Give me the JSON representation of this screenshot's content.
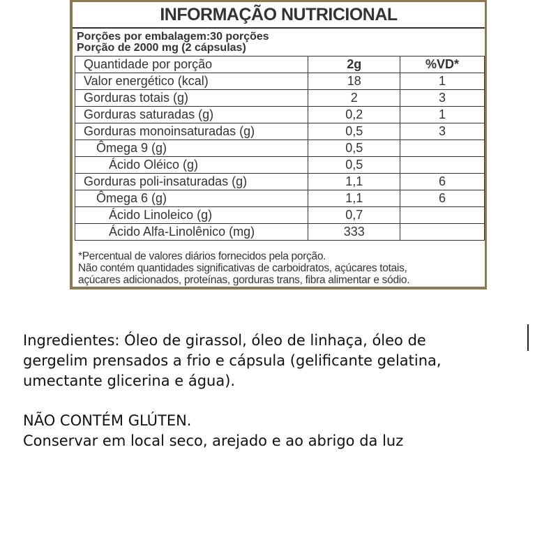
{
  "label": {
    "title": "INFORMAÇÃO NUTRICIONAL",
    "servings": [
      "Porções por embalagem:30 porções",
      "Porção de 2000 mg (2 cápsulas)"
    ],
    "table": {
      "header": [
        "Quantidade por porção",
        "2g",
        "%VD*"
      ],
      "rows": [
        [
          "Valor energético (kcal)",
          "18",
          "1"
        ],
        [
          "Gorduras totais (g)",
          "2",
          "3"
        ],
        [
          "Gorduras saturadas (g)",
          "0,2",
          "1"
        ],
        [
          "Gorduras monoinsaturadas (g)",
          "0,5",
          "3"
        ],
        [
          "Ômega 9 (g)",
          "0,5"
        ],
        [
          "Ácido Oléico (g)",
          "0,5"
        ],
        [
          "Gorduras poli-insaturadas (g)",
          "1,1",
          "6"
        ],
        [
          "Ômega 6 (g)",
          "1,1",
          "6"
        ],
        [
          "Ácido Linoleico (g)",
          "0,7"
        ],
        [
          "Ácido Alfa-Linolênico (mg)",
          "333"
        ]
      ]
    },
    "notes": [
      "*Percentual de valores diários fornecidos pela porção.",
      "Não contém quantidades significativas de carboidratos, açúcares totais,",
      "açúcares adicionados, proteínas, gorduras trans, fibra alimentar e sódio."
    ]
  },
  "text": {
    "ingredients": [
      "Ingredientes: Óleo de girassol, óleo de linhaça, óleo de",
      "gergelim prensados a frio e cápsula (gelificante gelatina,",
      "umectante glicerina e água)."
    ],
    "gluten": "NÃO CONTÉM GLÚTEN.",
    "storage": "Conservar em local seco, arejado e ao abrigo da luz"
  }
}
